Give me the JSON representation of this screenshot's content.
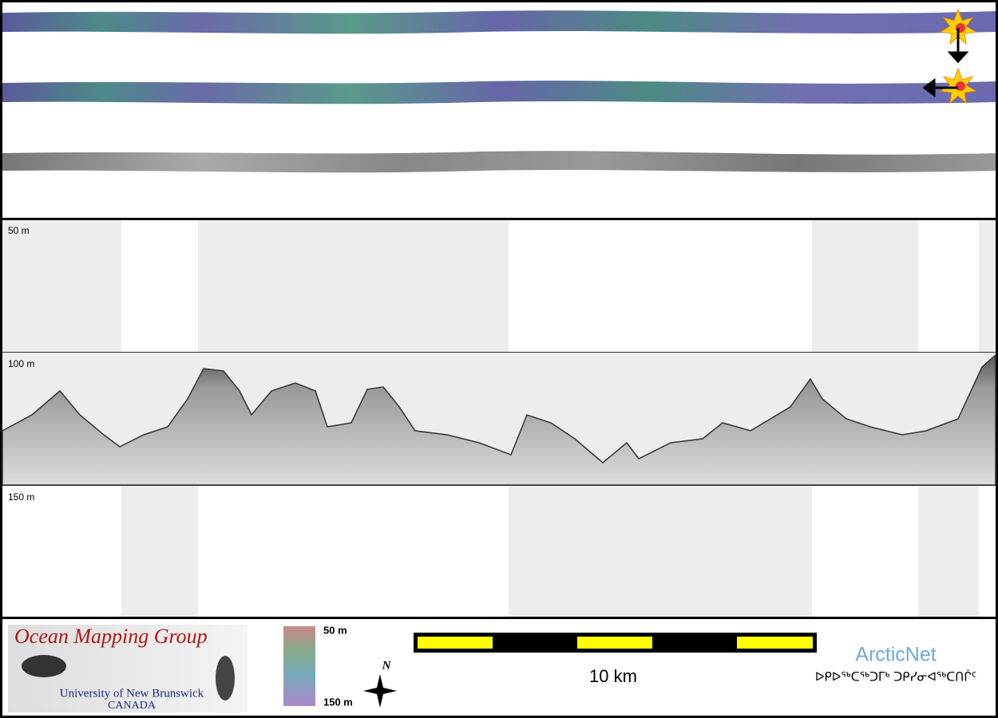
{
  "profile": {
    "depth_labels": [
      "50 m",
      "100 m",
      "150 m"
    ]
  },
  "logo": {
    "title": "Ocean Mapping Group",
    "university": "University of New Brunswick",
    "country": "CANADA"
  },
  "colorbar": {
    "top": "50 m",
    "bottom": "150 m"
  },
  "compass": {
    "label": "N"
  },
  "scale_bar": {
    "label": "10 km"
  },
  "arcticnet": {
    "name": "ArcticNet",
    "syllabics": "ᐅᑭᐅᖅᑕᖅᑐᒥᒃ ᑐᑭᓯᓂᐊᖅᑕᑎᒌᑦ"
  }
}
